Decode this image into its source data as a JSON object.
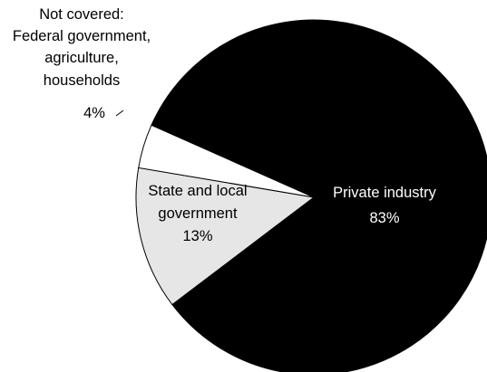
{
  "chart_data": {
    "type": "pie",
    "title": "",
    "slices": [
      {
        "label": "Private industry",
        "value": 83,
        "value_label": "83%",
        "color": "#000000",
        "text_color": "#ffffff"
      },
      {
        "label_lines": [
          "State and local",
          "government"
        ],
        "value": 13,
        "value_label": "13%",
        "color": "#e6e6e6",
        "text_color": "#000000"
      },
      {
        "label_lines": [
          "Not covered:",
          "Federal government,",
          "agriculture,",
          "households"
        ],
        "value": 4,
        "value_label": "4%",
        "color": "#ffffff",
        "text_color": "#000000"
      }
    ]
  }
}
